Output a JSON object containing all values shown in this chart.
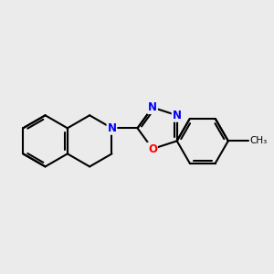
{
  "background_color": "#ebebeb",
  "bond_color": "#000000",
  "bond_width": 1.5,
  "atom_colors": {
    "N": "#0000ff",
    "O": "#ff0000",
    "C": "#000000"
  },
  "font_size_atom": 8.5
}
